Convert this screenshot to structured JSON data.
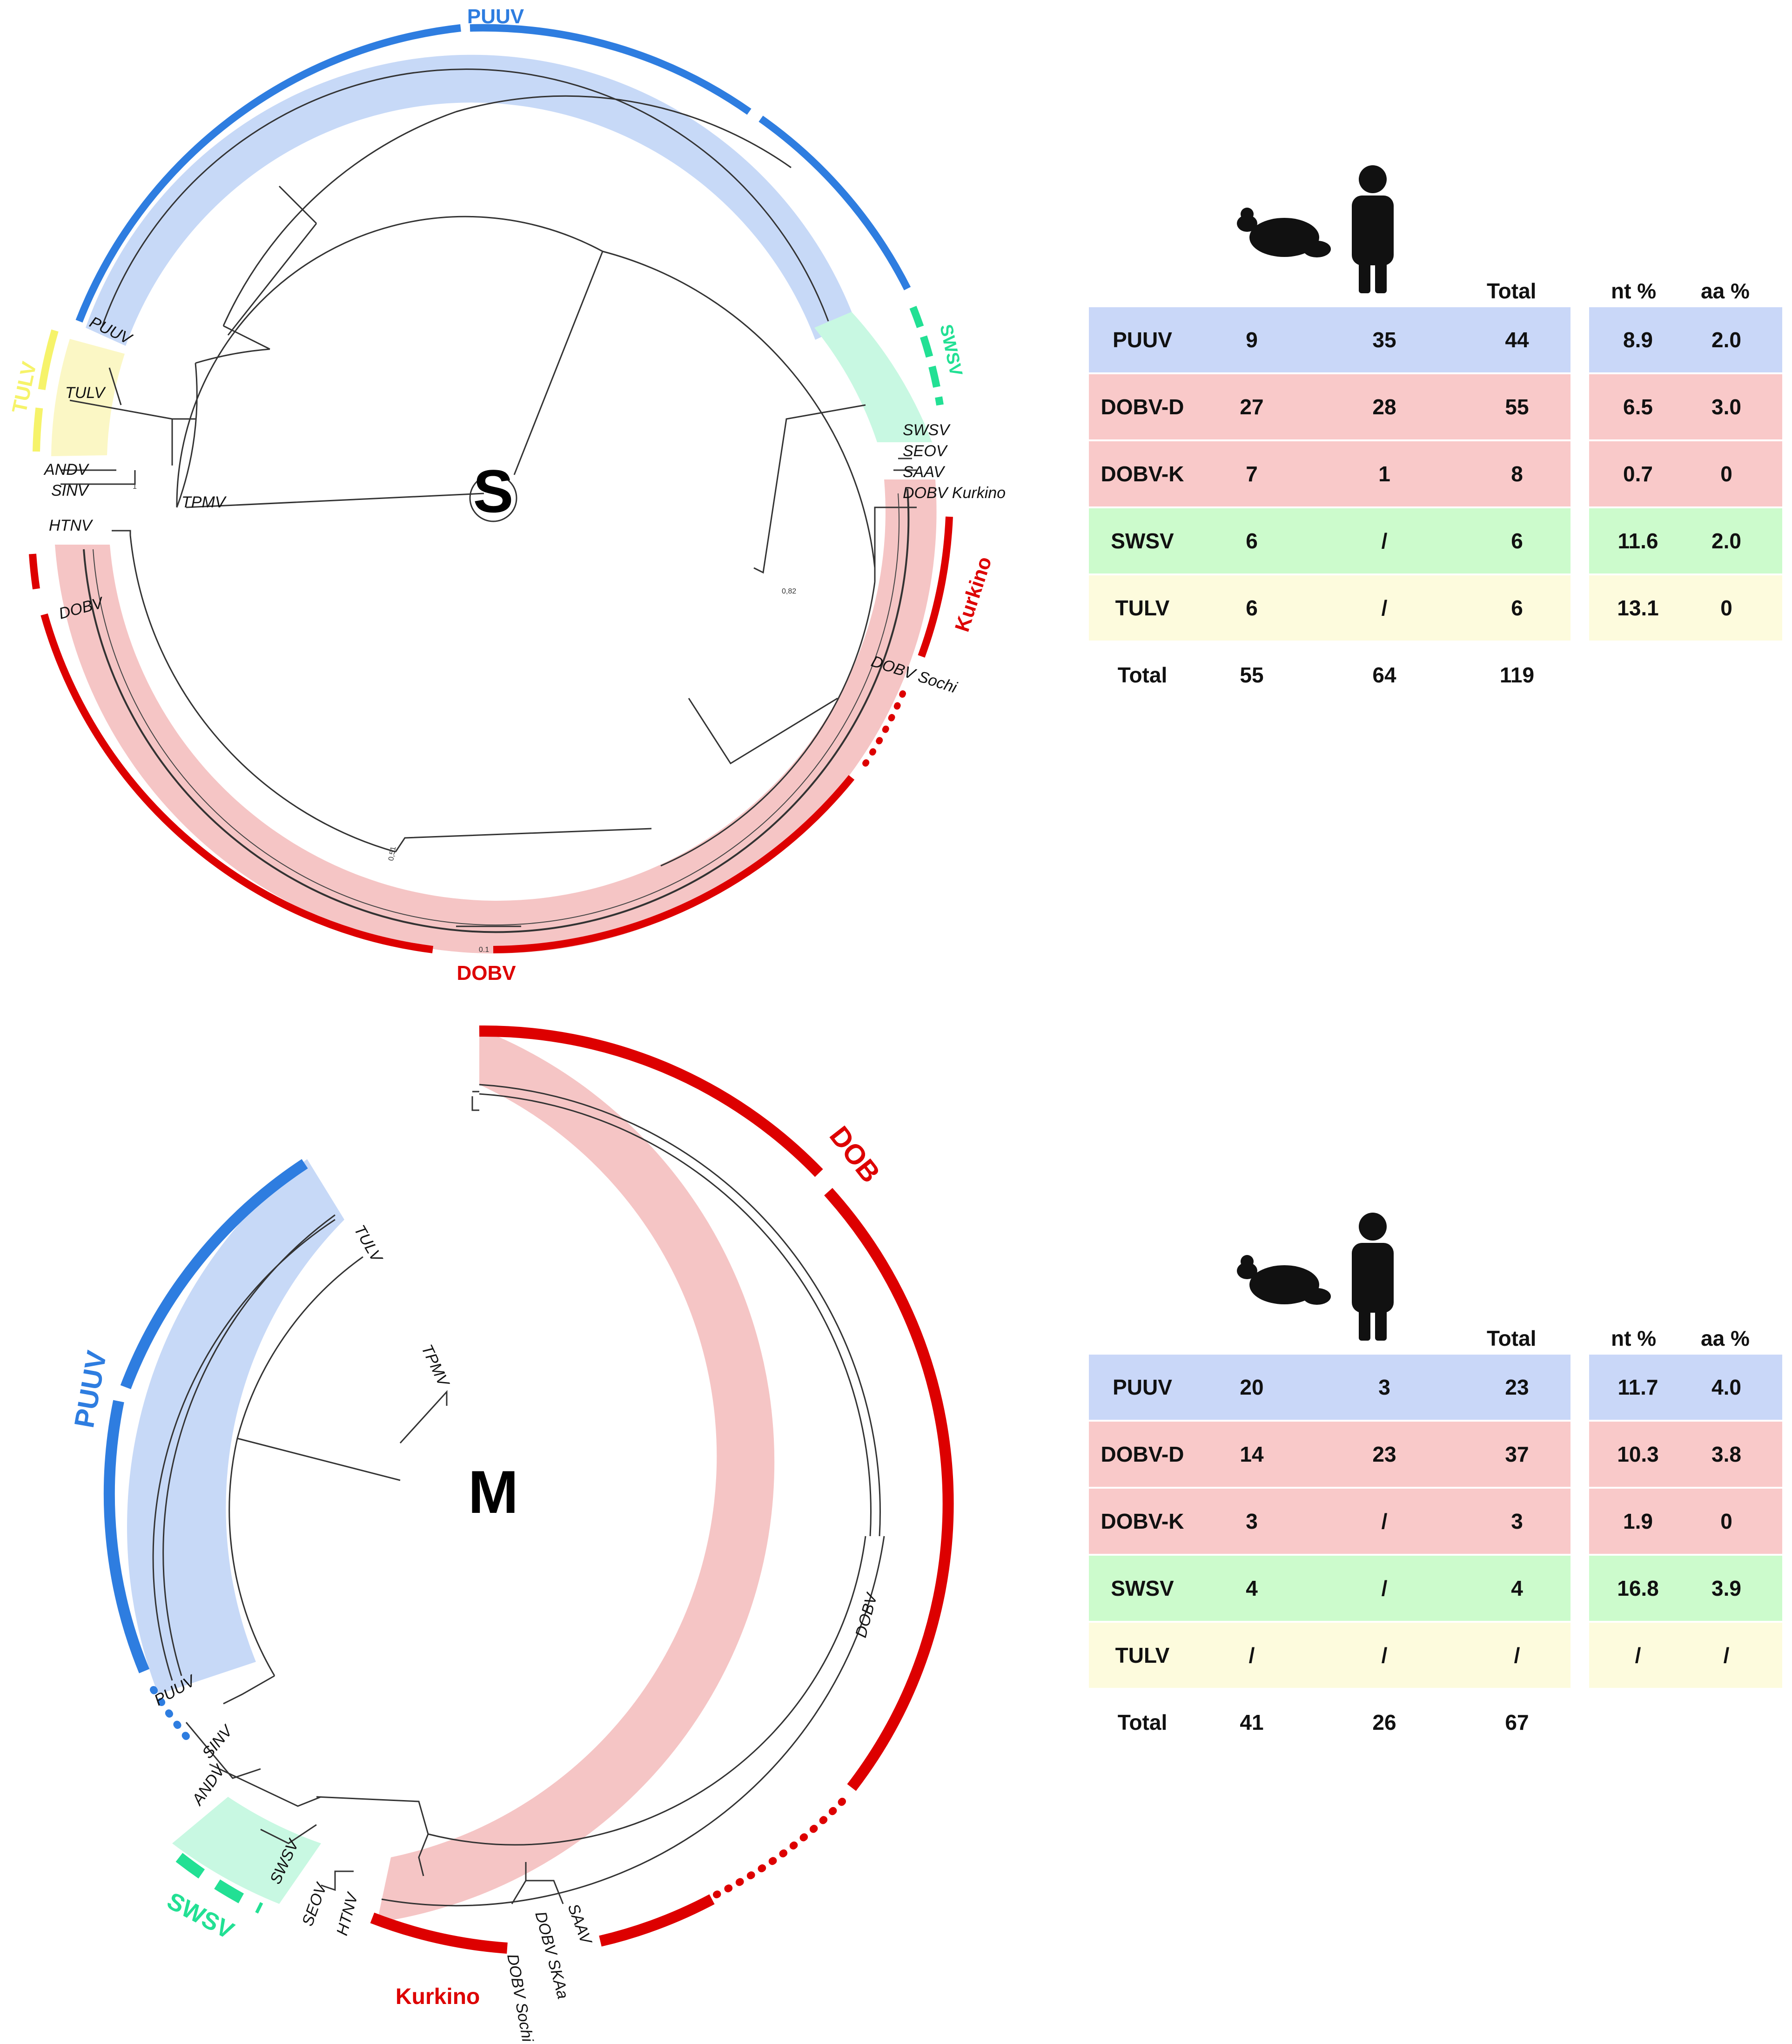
{
  "panel_s": {
    "letter": "S",
    "columns": [
      "Total",
      "nt %",
      "aa %"
    ],
    "rows": [
      {
        "name": "PUUV",
        "rodent": "9",
        "human": "35",
        "total": "44",
        "nt": "8.9",
        "aa": "2.0",
        "color": "#c9d7f8"
      },
      {
        "name": "DOBV-D",
        "rodent": "27",
        "human": "28",
        "total": "55",
        "nt": "6.5",
        "aa": "3.0",
        "color": "#f9c9c9"
      },
      {
        "name": "DOBV-K",
        "rodent": "7",
        "human": "1",
        "total": "8",
        "nt": "0.7",
        "aa": "0",
        "color": "#f9c9c9"
      },
      {
        "name": "SWSV",
        "rodent": "6",
        "human": "/",
        "total": "6",
        "nt": "11.6",
        "aa": "2.0",
        "color": "#ccfbcc"
      },
      {
        "name": "TULV",
        "rodent": "6",
        "human": "/",
        "total": "6",
        "nt": "13.1",
        "aa": "0",
        "color": "#fdfbdd"
      },
      {
        "name": "Total",
        "rodent": "55",
        "human": "64",
        "total": "119",
        "nt": "",
        "aa": "",
        "color": ""
      }
    ],
    "clade_labels": {
      "puuv": "PUUV",
      "swsv": "SWSV",
      "tulv": "TULV",
      "kurkino": "Kurkino",
      "dobv": "DOBV"
    },
    "taxa": [
      "PUUV",
      "TULV",
      "ANDV",
      "SINV",
      "TPMV",
      "HTNV",
      "DOBV",
      "SWSV",
      "SEOV",
      "SAAV",
      "DOBV Kurkino",
      "DOBV Sochi"
    ],
    "node_labels": [
      "0,82",
      "0,51",
      "1"
    ],
    "scale": "0.1"
  },
  "panel_m": {
    "letter": "M",
    "columns": [
      "Total",
      "nt %",
      "aa %"
    ],
    "rows": [
      {
        "name": "PUUV",
        "rodent": "20",
        "human": "3",
        "total": "23",
        "nt": "11.7",
        "aa": "4.0",
        "color": "#c9d7f8"
      },
      {
        "name": "DOBV-D",
        "rodent": "14",
        "human": "23",
        "total": "37",
        "nt": "10.3",
        "aa": "3.8",
        "color": "#f9c9c9"
      },
      {
        "name": "DOBV-K",
        "rodent": "3",
        "human": "/",
        "total": "3",
        "nt": "1.9",
        "aa": "0",
        "color": "#f9c9c9"
      },
      {
        "name": "SWSV",
        "rodent": "4",
        "human": "/",
        "total": "4",
        "nt": "16.8",
        "aa": "3.9",
        "color": "#ccfbcc"
      },
      {
        "name": "TULV",
        "rodent": "/",
        "human": "/",
        "total": "/",
        "nt": "/",
        "aa": "/",
        "color": "#fdfbdd"
      },
      {
        "name": "Total",
        "rodent": "41",
        "human": "26",
        "total": "67",
        "nt": "",
        "aa": "",
        "color": ""
      }
    ],
    "clade_labels": {
      "dob": "DOB",
      "puuv": "PUUV",
      "swsv": "SWSV",
      "kurkino": "Kurkino"
    },
    "taxa": [
      "TULV",
      "TPMV",
      "DOBV",
      "PUUV",
      "SINV",
      "ANDV",
      "SWSV",
      "SEOV",
      "HTNV",
      "DOBV Sochi",
      "DOBV SKAa",
      "SAAV"
    ]
  },
  "colors": {
    "puuv": "#2e7de0",
    "dobv": "#dd0000",
    "swsv": "#22e094",
    "tulv": "#f6f36a",
    "puuv_band": "#c7d9f7",
    "dobv_band": "#f5c5c5",
    "swsv_band": "#c8f8e2",
    "tulv_band": "#fbf7c5"
  },
  "icons": [
    "rodent-icon",
    "human-icon"
  ]
}
